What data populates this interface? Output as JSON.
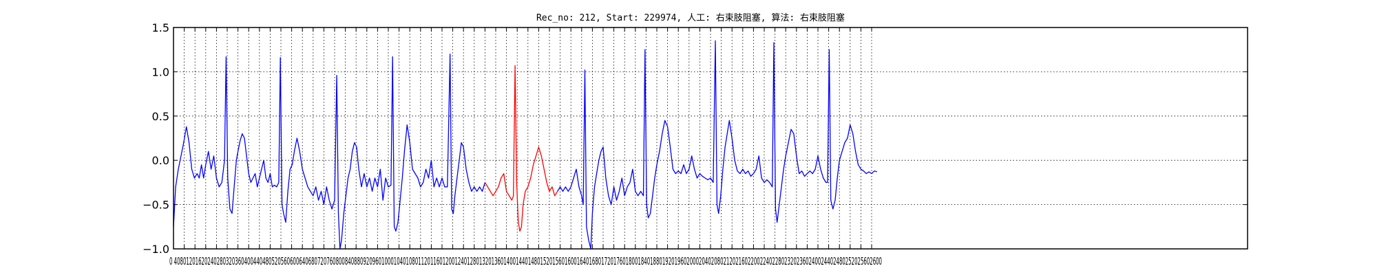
{
  "chart_data": {
    "type": "line",
    "title": "Rec_no: 212, Start: 229974, 人工: 右束肢阻塞, 算法: 右束肢阻塞",
    "xlabel": "",
    "ylabel": "",
    "xlim": [
      0,
      4000
    ],
    "ylim": [
      -1.0,
      1.5
    ],
    "grid": true,
    "yticks": [
      -1.0,
      -0.5,
      0.0,
      0.5,
      1.0,
      1.5
    ],
    "ytick_labels": [
      "−1.0",
      "−0.5",
      "0.0",
      "0.5",
      "1.0",
      "1.5"
    ],
    "xticks": [
      0,
      40,
      80,
      120,
      160,
      200,
      240,
      280,
      320,
      360,
      400,
      440,
      480,
      520,
      560,
      600,
      640,
      680,
      720,
      760,
      800,
      840,
      880,
      920,
      960,
      1000,
      1040,
      1080,
      1120,
      1160,
      1200,
      1240,
      1280,
      1320,
      1360,
      1400,
      1440,
      1480,
      1520,
      1560,
      1600,
      1640,
      1680,
      1720,
      1760,
      1800,
      1840,
      1880,
      1920,
      1960,
      2000,
      2040,
      2080,
      2120,
      2160,
      2200,
      2240,
      2280,
      2320,
      2360,
      2400,
      2440,
      2480,
      2520,
      2560,
      2600
    ],
    "xtick_labels_text": "0 4080120162024028032036040044048052056060064068072076080084088092096010001040108011201160120012401280132013601400144014801520156016001640168017201760180018401880192019602000204020802120216022002240228023202360240024402480252025602600",
    "series": [
      {
        "color": "#0000ff",
        "x": [
          0,
          8,
          18,
          28,
          38,
          48,
          58,
          68,
          78,
          88,
          96,
          104,
          112,
          120,
          130,
          140,
          150,
          160,
          170,
          180,
          190,
          196,
          202,
          210,
          218,
          226,
          234,
          240,
          248,
          256,
          264,
          272,
          280,
          288,
          296,
          304,
          312,
          320,
          328,
          336,
          344,
          352,
          360,
          368,
          376,
          384,
          392,
          398,
          404,
          410,
          418,
          426,
          434,
          442,
          450,
          460,
          470,
          480,
          490,
          500,
          510,
          520,
          530,
          540,
          550,
          560,
          570,
          580,
          590,
          600,
          608,
          614,
          620,
          626,
          634,
          642,
          650,
          658,
          666,
          674,
          682,
          690,
          700,
          710,
          720,
          730,
          740,
          750,
          760,
          770,
          780,
          790,
          800,
          810,
          816,
          822,
          828,
          836,
          844,
          852,
          860,
          870,
          880,
          890,
          900,
          910,
          920,
          930,
          940,
          950,
          960,
          970,
          980,
          990,
          1000,
          1010,
          1020,
          1030,
          1036,
          1042,
          1048,
          1056,
          1064,
          1072,
          1080,
          1090,
          1100,
          1110,
          1120,
          1130,
          1140,
          1150,
          1160
        ],
        "y": [
          -0.75,
          -0.3,
          -0.1,
          0.05,
          0.2,
          0.38,
          0.2,
          -0.1,
          -0.2,
          -0.15,
          -0.2,
          -0.05,
          -0.2,
          -0.05,
          0.1,
          -0.1,
          0.05,
          -0.2,
          -0.3,
          -0.25,
          0.0,
          1.17,
          -0.2,
          -0.55,
          -0.6,
          -0.3,
          0.0,
          0.1,
          0.22,
          0.3,
          0.25,
          0.05,
          -0.15,
          -0.25,
          -0.2,
          -0.15,
          -0.3,
          -0.2,
          -0.1,
          0.0,
          -0.2,
          -0.25,
          -0.15,
          -0.3,
          -0.28,
          -0.3,
          -0.25,
          1.16,
          -0.5,
          -0.6,
          -0.7,
          -0.35,
          -0.1,
          -0.05,
          0.1,
          0.25,
          0.1,
          -0.1,
          -0.2,
          -0.3,
          -0.35,
          -0.4,
          -0.3,
          -0.45,
          -0.35,
          -0.5,
          -0.3,
          -0.45,
          -0.55,
          -0.45,
          0.96,
          -0.6,
          -1.0,
          -0.9,
          -0.6,
          -0.4,
          -0.2,
          -0.1,
          0.1,
          0.2,
          0.15,
          -0.1,
          -0.3,
          -0.15,
          -0.3,
          -0.2,
          -0.35,
          -0.2,
          -0.3,
          -0.1,
          -0.45,
          -0.2,
          -0.3,
          -0.28,
          1.17,
          -0.75,
          -0.8,
          -0.7,
          -0.45,
          -0.2,
          0.1,
          0.4,
          0.2,
          -0.1,
          -0.15,
          -0.2,
          -0.3,
          -0.25,
          -0.1,
          -0.2,
          0.0,
          -0.3,
          -0.2,
          -0.3,
          -0.2,
          -0.3,
          -0.3,
          1.2,
          -0.55,
          -0.6,
          -0.4,
          -0.2,
          0.0,
          0.2,
          0.15,
          -0.1,
          -0.25,
          -0.35,
          -0.3,
          -0.35,
          -0.3,
          -0.35,
          -0.25
        ]
      },
      {
        "color": "#ff0000",
        "x": [
          1160,
          1170,
          1180,
          1190,
          1200,
          1210,
          1220,
          1230,
          1240,
          1250,
          1260,
          1266,
          1272,
          1278,
          1284,
          1290,
          1296,
          1302,
          1310,
          1320,
          1330,
          1340,
          1350,
          1360,
          1370,
          1380,
          1390,
          1400,
          1410,
          1420,
          1430
        ],
        "y": [
          -0.25,
          -0.3,
          -0.35,
          -0.4,
          -0.35,
          -0.3,
          -0.2,
          -0.15,
          -0.35,
          -0.4,
          -0.45,
          -0.4,
          1.07,
          -0.25,
          -0.7,
          -0.8,
          -0.75,
          -0.5,
          -0.35,
          -0.3,
          -0.2,
          -0.05,
          0.05,
          0.15,
          0.05,
          -0.1,
          -0.25,
          -0.35,
          -0.3,
          -0.4,
          -0.35
        ]
      },
      {
        "color": "#0000ff",
        "x": [
          1430,
          1440,
          1450,
          1460,
          1470,
          1480,
          1490,
          1500,
          1510,
          1520,
          1526,
          1532,
          1538,
          1546,
          1554,
          1560,
          1568,
          1576,
          1584,
          1592,
          1600,
          1610,
          1620,
          1630,
          1640,
          1650,
          1660,
          1670,
          1680,
          1690,
          1700,
          1710,
          1720,
          1730,
          1740,
          1750,
          1756,
          1762,
          1768,
          1776,
          1784,
          1792,
          1800,
          1810,
          1820,
          1830,
          1840,
          1850,
          1860,
          1870,
          1880,
          1890,
          1900,
          1910,
          1920,
          1930,
          1940,
          1950,
          1960,
          1970,
          1980,
          1990,
          2000,
          2010,
          2018,
          2024,
          2030,
          2038,
          2046,
          2054,
          2062,
          2070,
          2080,
          2090,
          2100,
          2110,
          2120,
          2130,
          2140,
          2150,
          2160,
          2170,
          2180,
          2190,
          2200,
          2210,
          2220,
          2230,
          2236,
          2242,
          2248,
          2256,
          2264,
          2272,
          2280,
          2290,
          2300,
          2310,
          2320,
          2330,
          2340,
          2350,
          2360,
          2370,
          2380,
          2390,
          2400,
          2410,
          2420,
          2430,
          2436,
          2442,
          2448,
          2456,
          2464,
          2472,
          2480,
          2490,
          2500,
          2510,
          2520,
          2530,
          2540,
          2550,
          2560,
          2570,
          2580,
          2590,
          2600,
          2610,
          2620
        ],
        "y": [
          -0.35,
          -0.3,
          -0.35,
          -0.3,
          -0.35,
          -0.3,
          -0.2,
          -0.1,
          -0.3,
          -0.4,
          -0.5,
          1.02,
          -0.75,
          -0.9,
          -1.0,
          -0.6,
          -0.3,
          -0.15,
          0.0,
          0.1,
          0.15,
          -0.2,
          -0.4,
          -0.5,
          -0.3,
          -0.45,
          -0.35,
          -0.2,
          -0.4,
          -0.3,
          -0.25,
          -0.1,
          -0.35,
          -0.4,
          -0.35,
          -0.4,
          1.25,
          -0.5,
          -0.65,
          -0.6,
          -0.4,
          -0.2,
          -0.05,
          0.1,
          0.3,
          0.45,
          0.38,
          0.15,
          -0.1,
          -0.15,
          -0.12,
          -0.15,
          -0.05,
          -0.15,
          -0.1,
          0.05,
          -0.1,
          -0.2,
          -0.15,
          -0.18,
          -0.2,
          -0.22,
          -0.2,
          -0.25,
          1.35,
          -0.5,
          -0.6,
          -0.4,
          -0.1,
          0.15,
          0.3,
          0.45,
          0.25,
          0.0,
          -0.12,
          -0.15,
          -0.1,
          -0.15,
          -0.12,
          -0.18,
          -0.15,
          -0.1,
          0.05,
          -0.2,
          -0.25,
          -0.22,
          -0.25,
          -0.3,
          1.33,
          -0.55,
          -0.7,
          -0.5,
          -0.3,
          -0.1,
          0.05,
          0.2,
          0.35,
          0.3,
          0.05,
          -0.15,
          -0.12,
          -0.18,
          -0.15,
          -0.12,
          -0.15,
          -0.1,
          0.05,
          -0.1,
          -0.2,
          -0.25,
          -0.25,
          1.25,
          -0.45,
          -0.55,
          -0.45,
          -0.2,
          0.0,
          0.1,
          0.2,
          0.25,
          0.4,
          0.3,
          0.1,
          -0.05,
          -0.1,
          -0.12,
          -0.15,
          -0.13,
          -0.15,
          -0.12,
          -0.13
        ]
      }
    ]
  }
}
